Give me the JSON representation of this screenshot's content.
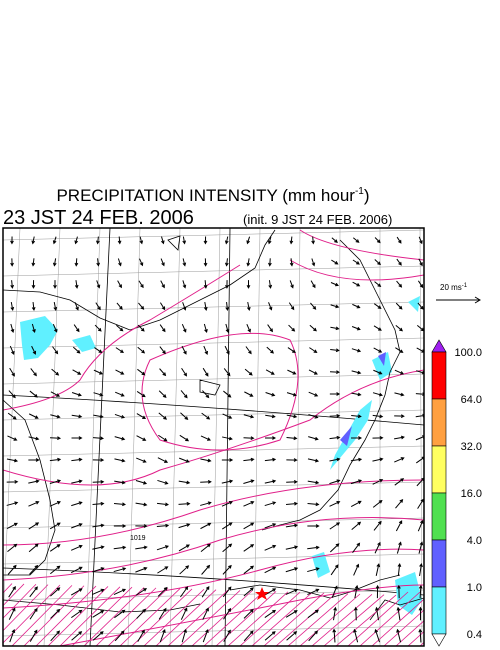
{
  "title": {
    "main": "PRECIPITATION INTENSITY (mm hour",
    "sup": "-1",
    "close": ")"
  },
  "valid_time": "23 JST 24 FEB. 2006",
  "init_time": "(init. 9 JST 24 FEB. 2006)",
  "vector_legend": {
    "text": "20 ms",
    "sup": "-1"
  },
  "contour_label": "1019",
  "colorbar": {
    "labels": [
      "100.0",
      "64.0",
      "32.0",
      "16.0",
      "4.0",
      "1.0",
      "0.4"
    ],
    "colors": [
      "#a020f0",
      "#ff0000",
      "#ffa040",
      "#ffff60",
      "#50e050",
      "#6060ff",
      "#60f0ff",
      "#ffffff"
    ]
  }
}
